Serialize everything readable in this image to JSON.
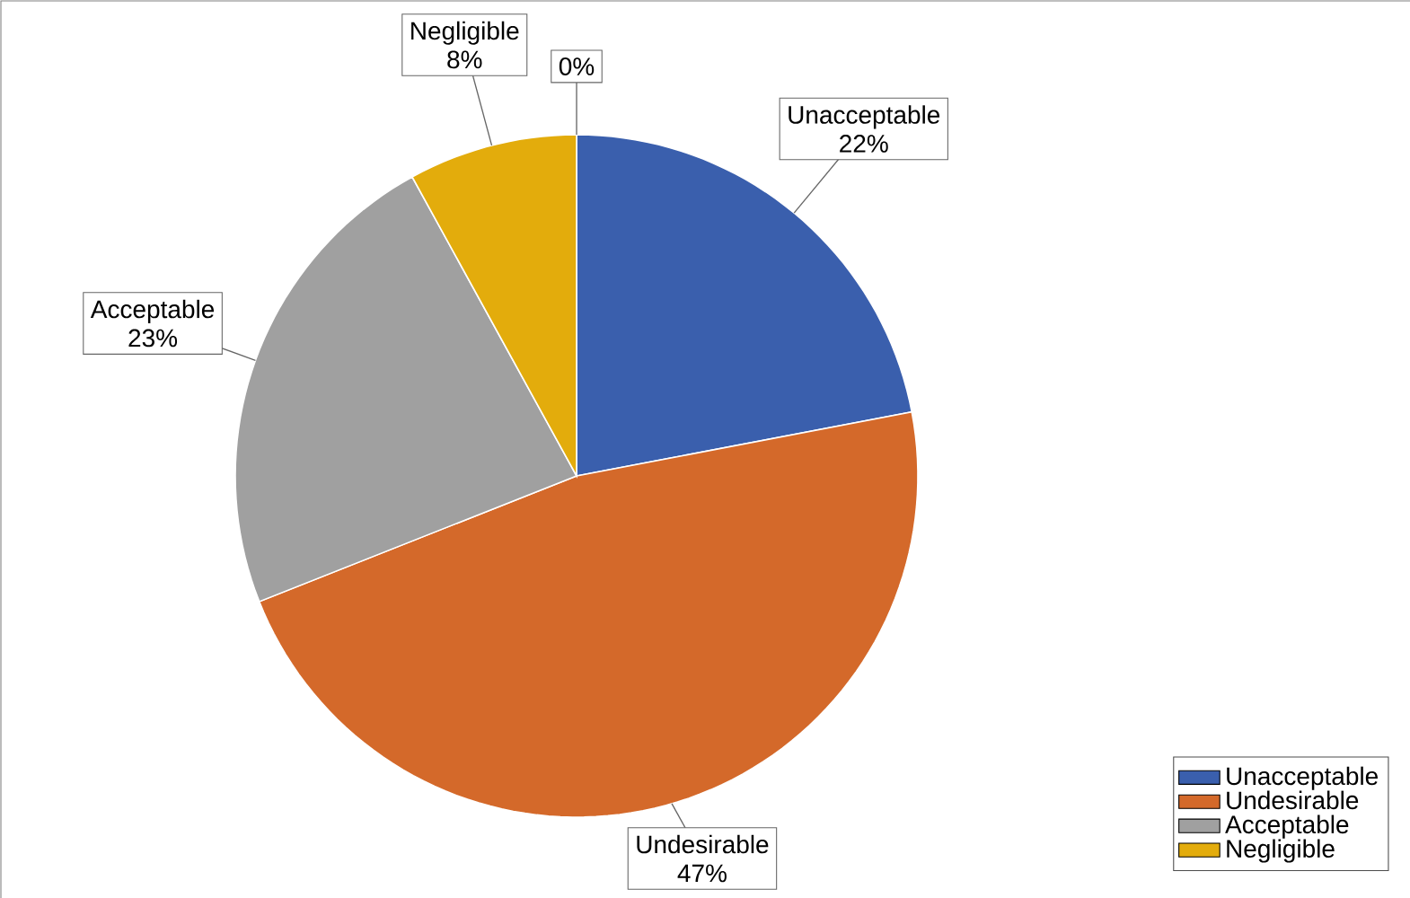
{
  "chart_data": {
    "type": "pie",
    "categories": [
      "Unacceptable",
      "Undesirable",
      "Acceptable",
      "Negligible",
      null
    ],
    "values": [
      22,
      47,
      23,
      8,
      0
    ],
    "colors": [
      "#3a5fad",
      "#d4692a",
      "#a0a0a0",
      "#e3ac0c",
      "#5b9bd5"
    ],
    "value_labels": [
      "22%",
      "47%",
      "23%",
      "8%",
      "0%"
    ],
    "legend": "bottom right"
  }
}
